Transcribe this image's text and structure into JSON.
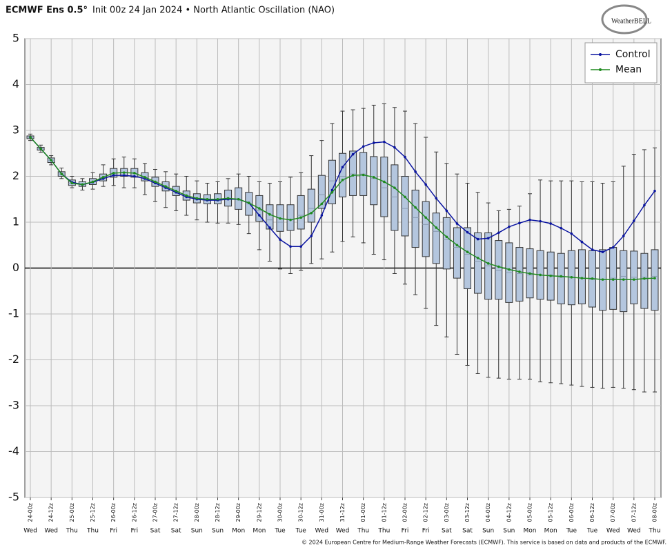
{
  "chart_data": {
    "type": "box",
    "title": "ECMWF Ens 0.5°",
    "subtitle": "Init 00z 24 Jan 2024 • North Atlantic Oscillation (NAO)",
    "logo": "WeatherBELL",
    "footer": "© 2024 European Centre for Medium-Range Weather Forecasts (ECMWF). This service is based on data and products of the ECMWF.",
    "categories": [
      "24-00z",
      null,
      "24-12z",
      null,
      "25-00z",
      null,
      "25-12z",
      null,
      "26-00z",
      null,
      "26-12z",
      null,
      "27-00z",
      null,
      "27-12z",
      null,
      "28-00z",
      null,
      "28-12z",
      null,
      "29-00z",
      null,
      "29-12z",
      null,
      "30-00z",
      null,
      "30-12z",
      null,
      "31-00z",
      null,
      "31-12z",
      null,
      "01-00z",
      null,
      "01-12z",
      null,
      "02-00z",
      null,
      "02-12z",
      null,
      "03-00z",
      null,
      "03-12z",
      null,
      "04-00z",
      null,
      "04-12z",
      null,
      "05-00z",
      null,
      "05-12z",
      null,
      "06-00z",
      null,
      "06-12z",
      null,
      "07-00z",
      null,
      "07-12z",
      null,
      "08-00z"
    ],
    "days": [
      "Wed",
      null,
      "Wed",
      null,
      "Thu",
      null,
      "Thu",
      null,
      "Fri",
      null,
      "Fri",
      null,
      "Sat",
      null,
      "Sat",
      null,
      "Sun",
      null,
      "Sun",
      null,
      "Mon",
      null,
      "Mon",
      null,
      "Tue",
      null,
      "Tue",
      null,
      "Wed",
      null,
      "Wed",
      null,
      "Thu",
      null,
      "Thu",
      null,
      "Fri",
      null,
      "Fri",
      null,
      "Sat",
      null,
      "Sat",
      null,
      "Sun",
      null,
      "Sun",
      null,
      "Mon",
      null,
      "Mon",
      null,
      "Tue",
      null,
      "Tue",
      null,
      "Wed",
      null,
      "Wed",
      null,
      "Thu"
    ],
    "box_min": [
      2.78,
      2.52,
      2.25,
      1.95,
      1.75,
      1.7,
      1.72,
      1.78,
      1.8,
      1.75,
      1.75,
      1.6,
      1.45,
      1.32,
      1.25,
      1.15,
      1.05,
      1.0,
      0.98,
      0.98,
      0.95,
      0.75,
      0.4,
      0.15,
      -0.02,
      -0.12,
      -0.05,
      0.1,
      0.2,
      0.35,
      0.58,
      0.68,
      0.55,
      0.3,
      0.18,
      -0.12,
      -0.35,
      -0.58,
      -0.88,
      -1.25,
      -1.5,
      -1.88,
      -2.12,
      -2.3,
      -2.38,
      -2.4,
      -2.42,
      -2.42,
      -2.42,
      -2.48,
      -2.5,
      -2.52,
      -2.55,
      -2.58,
      -2.6,
      -2.62,
      -2.6,
      -2.62,
      -2.65,
      -2.7,
      -2.7
    ],
    "box_q1": [
      2.82,
      2.57,
      2.3,
      2.0,
      1.8,
      1.78,
      1.82,
      1.9,
      1.98,
      2.0,
      1.98,
      1.9,
      1.78,
      1.68,
      1.58,
      1.48,
      1.42,
      1.4,
      1.4,
      1.35,
      1.28,
      1.15,
      1.02,
      0.85,
      0.8,
      0.82,
      0.85,
      1.0,
      1.3,
      1.4,
      1.55,
      1.58,
      1.58,
      1.38,
      1.12,
      0.82,
      0.7,
      0.45,
      0.25,
      0.1,
      -0.02,
      -0.22,
      -0.45,
      -0.55,
      -0.68,
      -0.68,
      -0.75,
      -0.72,
      -0.65,
      -0.68,
      -0.7,
      -0.78,
      -0.8,
      -0.78,
      -0.85,
      -0.92,
      -0.9,
      -0.95,
      -0.78,
      -0.88,
      -0.92
    ],
    "box_median": [
      2.85,
      2.6,
      2.35,
      2.05,
      1.85,
      1.82,
      1.88,
      1.97,
      2.07,
      2.08,
      2.07,
      1.98,
      1.88,
      1.77,
      1.67,
      1.57,
      1.5,
      1.48,
      1.5,
      1.5,
      1.5,
      1.4,
      1.25,
      1.05,
      1.0,
      1.05,
      1.15,
      1.3,
      1.6,
      1.9,
      2.0,
      2.05,
      2.05,
      1.95,
      1.75,
      1.55,
      1.3,
      1.1,
      0.95,
      0.8,
      0.62,
      0.45,
      0.3,
      0.15,
      0.05,
      -0.05,
      -0.1,
      -0.12,
      -0.15,
      -0.15,
      -0.15,
      -0.2,
      -0.2,
      -0.22,
      -0.25,
      -0.25,
      -0.22,
      -0.18,
      -0.2,
      -0.2,
      -0.18
    ],
    "box_q3": [
      2.88,
      2.63,
      2.4,
      2.1,
      1.92,
      1.88,
      1.95,
      2.05,
      2.17,
      2.17,
      2.17,
      2.08,
      1.98,
      1.88,
      1.78,
      1.68,
      1.62,
      1.6,
      1.62,
      1.7,
      1.75,
      1.65,
      1.58,
      1.38,
      1.38,
      1.38,
      1.58,
      1.72,
      2.02,
      2.35,
      2.5,
      2.55,
      2.52,
      2.43,
      2.42,
      2.25,
      2.0,
      1.7,
      1.45,
      1.2,
      1.1,
      0.88,
      0.88,
      0.77,
      0.77,
      0.6,
      0.55,
      0.45,
      0.42,
      0.38,
      0.35,
      0.32,
      0.38,
      0.4,
      0.38,
      0.4,
      0.45,
      0.38,
      0.37,
      0.32,
      0.4
    ],
    "box_max": [
      2.92,
      2.68,
      2.45,
      2.18,
      2.0,
      1.95,
      2.08,
      2.25,
      2.38,
      2.42,
      2.38,
      2.28,
      2.15,
      2.1,
      2.05,
      2.0,
      1.9,
      1.85,
      1.88,
      1.95,
      2.05,
      2.0,
      1.88,
      1.85,
      1.88,
      1.98,
      2.08,
      2.45,
      2.78,
      3.15,
      3.42,
      3.45,
      3.48,
      3.55,
      3.58,
      3.5,
      3.42,
      3.15,
      2.85,
      2.53,
      2.28,
      2.05,
      1.85,
      1.65,
      1.42,
      1.25,
      1.28,
      1.35,
      1.62,
      1.92,
      1.9,
      1.9,
      1.9,
      1.88,
      1.88,
      1.85,
      1.88,
      2.22,
      2.48,
      2.58,
      2.62
    ],
    "box_color": "#b4c6de",
    "series": [
      {
        "name": "Control",
        "color": "#0a14a0",
        "values": [
          2.85,
          2.6,
          2.35,
          2.05,
          1.87,
          1.82,
          1.87,
          1.95,
          2.02,
          2.02,
          2.0,
          1.95,
          1.85,
          1.75,
          1.65,
          1.55,
          1.5,
          1.48,
          1.48,
          1.5,
          1.5,
          1.42,
          1.15,
          0.88,
          0.62,
          0.47,
          0.47,
          0.7,
          1.15,
          1.7,
          2.2,
          2.48,
          2.65,
          2.73,
          2.75,
          2.63,
          2.42,
          2.1,
          1.82,
          1.52,
          1.25,
          0.97,
          0.78,
          0.63,
          0.65,
          0.77,
          0.9,
          0.98,
          1.05,
          1.02,
          0.97,
          0.87,
          0.75,
          0.57,
          0.4,
          0.35,
          0.45,
          0.7,
          1.03,
          1.37,
          1.68
        ]
      },
      {
        "name": "Mean",
        "color": "#1f8a1f",
        "values": [
          2.85,
          2.6,
          2.35,
          2.05,
          1.85,
          1.82,
          1.88,
          1.98,
          2.07,
          2.08,
          2.07,
          1.98,
          1.88,
          1.78,
          1.68,
          1.58,
          1.52,
          1.5,
          1.5,
          1.52,
          1.5,
          1.42,
          1.3,
          1.17,
          1.08,
          1.05,
          1.1,
          1.2,
          1.4,
          1.65,
          1.92,
          2.02,
          2.03,
          1.98,
          1.88,
          1.75,
          1.55,
          1.32,
          1.1,
          0.88,
          0.68,
          0.5,
          0.35,
          0.22,
          0.1,
          0.03,
          -0.03,
          -0.08,
          -0.12,
          -0.15,
          -0.17,
          -0.18,
          -0.2,
          -0.22,
          -0.23,
          -0.25,
          -0.25,
          -0.25,
          -0.25,
          -0.23,
          -0.22
        ]
      }
    ],
    "ylim": [
      -5,
      5
    ],
    "yticks": [
      -5,
      -4,
      -3,
      -2,
      -1,
      0,
      1,
      2,
      3,
      4,
      5
    ],
    "grid": true,
    "legend": "upper right"
  }
}
